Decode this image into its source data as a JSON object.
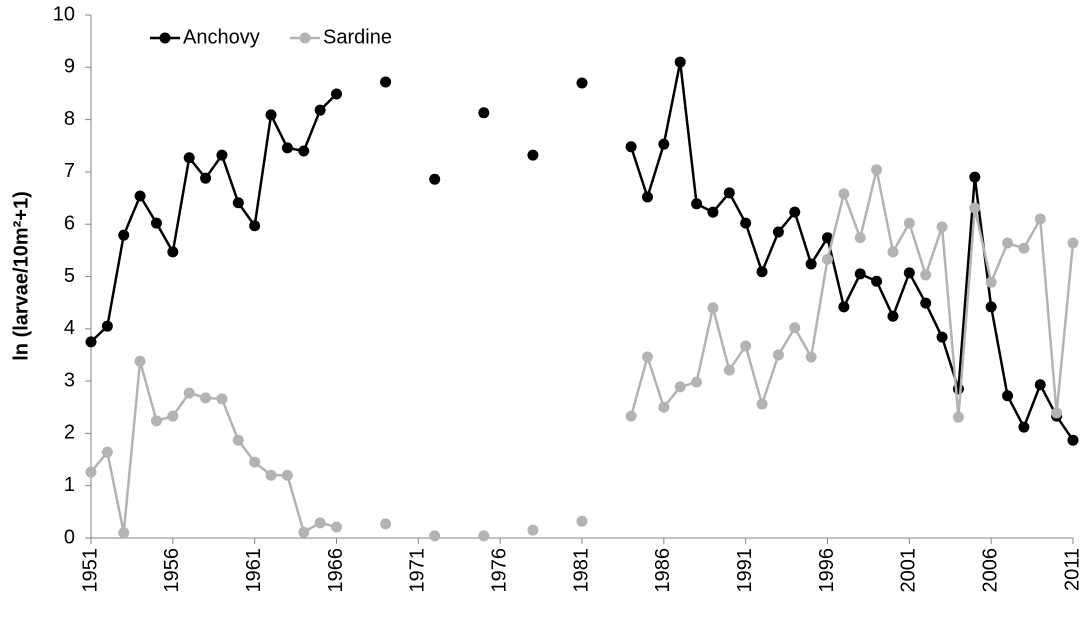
{
  "chart_data": {
    "type": "line",
    "y_label": "ln (larvae/10m²+1)",
    "x": [
      1951,
      1952,
      1953,
      1954,
      1955,
      1956,
      1957,
      1958,
      1959,
      1960,
      1961,
      1962,
      1963,
      1964,
      1965,
      1966,
      1967,
      1968,
      1969,
      1970,
      1971,
      1972,
      1973,
      1974,
      1975,
      1976,
      1977,
      1978,
      1979,
      1980,
      1981,
      1982,
      1983,
      1984,
      1985,
      1986,
      1987,
      1988,
      1989,
      1990,
      1991,
      1992,
      1993,
      1994,
      1995,
      1996,
      1997,
      1998,
      1999,
      2000,
      2001,
      2002,
      2003,
      2004,
      2005,
      2006,
      2007,
      2008,
      2009,
      2010,
      2011
    ],
    "series": [
      {
        "name": "Anchovy",
        "color": "#000000",
        "values": [
          3.75,
          4.05,
          5.79,
          6.54,
          6.02,
          5.47,
          7.27,
          6.88,
          7.32,
          6.41,
          5.97,
          8.09,
          7.46,
          7.4,
          8.18,
          8.49,
          null,
          null,
          8.72,
          null,
          null,
          6.86,
          null,
          null,
          8.13,
          null,
          null,
          7.32,
          null,
          null,
          8.7,
          null,
          null,
          7.48,
          6.52,
          7.53,
          9.1,
          6.39,
          6.23,
          6.6,
          6.02,
          5.09,
          5.85,
          6.23,
          5.24,
          5.74,
          4.42,
          5.05,
          4.91,
          4.24,
          5.07,
          4.49,
          3.84,
          2.85,
          6.9,
          4.42,
          2.72,
          2.12,
          2.93,
          2.33,
          1.87
        ]
      },
      {
        "name": "Sardine",
        "color": "#b3b3b3",
        "values": [
          1.26,
          1.64,
          0.1,
          3.38,
          2.24,
          2.33,
          2.77,
          2.68,
          2.66,
          1.87,
          1.45,
          1.2,
          1.2,
          0.11,
          0.29,
          0.21,
          null,
          null,
          0.27,
          null,
          null,
          0.04,
          null,
          null,
          0.04,
          null,
          null,
          0.15,
          null,
          null,
          0.32,
          null,
          null,
          2.33,
          3.46,
          2.5,
          2.89,
          2.98,
          4.4,
          3.21,
          3.67,
          2.56,
          3.5,
          4.02,
          3.46,
          5.33,
          6.58,
          5.74,
          7.04,
          5.47,
          6.02,
          5.03,
          5.95,
          2.31,
          6.31,
          4.89,
          5.64,
          5.54,
          6.1,
          2.39,
          5.64
        ]
      }
    ],
    "xlim": [
      1951,
      2011
    ],
    "xticks": [
      1951,
      1956,
      1961,
      1966,
      1971,
      1976,
      1981,
      1986,
      1991,
      1996,
      2001,
      2006,
      2011
    ],
    "ylim": [
      0,
      10
    ],
    "yticks": [
      0,
      1,
      2,
      3,
      4,
      5,
      6,
      7,
      8,
      9,
      10
    ],
    "grid": false,
    "legend": "top-left"
  }
}
